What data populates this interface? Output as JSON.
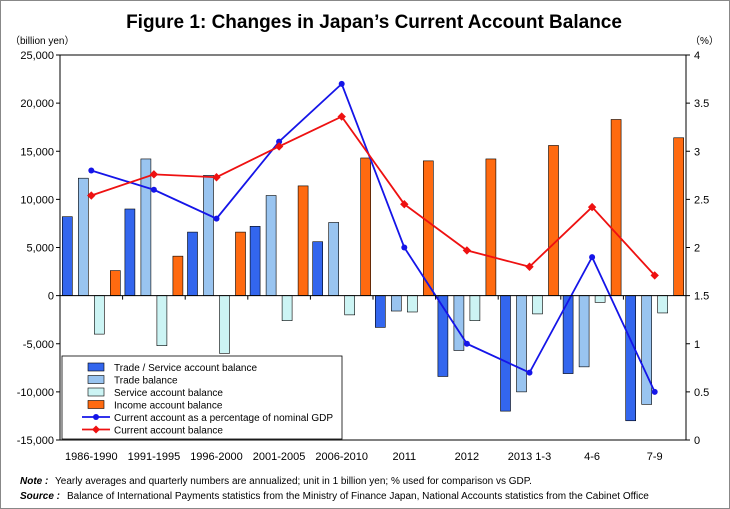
{
  "chart_data": {
    "type": "bar",
    "title": "Figure 1: Changes in Japan’s Current Account Balance",
    "y_left_unit": "（billion yen）",
    "y_right_unit": "（%）",
    "ylim_left": [
      -15000,
      25000
    ],
    "ylim_right": [
      0,
      4
    ],
    "y_left_ticks": [
      "-15,000",
      "-10,000",
      "-5,000",
      "0",
      "5,000",
      "10,000",
      "15,000",
      "20,000",
      "25,000"
    ],
    "y_right_ticks": [
      "0",
      "0.5",
      "1",
      "1.5",
      "2",
      "2.5",
      "3",
      "3.5",
      "4"
    ],
    "categories": [
      "1986-1990",
      "1991-1995",
      "1996-2000",
      "2001-2005",
      "2006-2010",
      "2011",
      "2012",
      "2013  1-3",
      "4-6",
      "7-9"
    ],
    "bar_series": [
      {
        "name": "Trade / Service account balance",
        "color": "#3366ee",
        "values": [
          8200,
          9000,
          6600,
          7200,
          5600,
          -3300,
          -8400,
          -12000,
          -8100,
          -13000
        ]
      },
      {
        "name": "Trade balance",
        "color": "#99c4f0",
        "values": [
          12200,
          14200,
          12500,
          10400,
          7600,
          -1600,
          -5700,
          -10000,
          -7400,
          -11300
        ]
      },
      {
        "name": "Service account balance",
        "color": "#ccf4f4",
        "values": [
          -4000,
          -5200,
          -6000,
          -2600,
          -2000,
          -1700,
          -2600,
          -1900,
          -700,
          -1800
        ]
      },
      {
        "name": "Income account balance",
        "color": "#ff6a10",
        "values": [
          2600,
          4100,
          6600,
          11400,
          14300,
          14000,
          14200,
          15600,
          18300,
          16400
        ]
      }
    ],
    "line_series": [
      {
        "name": "Current account as a percentage of nominal GDP",
        "color": "#1515e8",
        "axis": "right",
        "values": [
          2.8,
          2.6,
          2.3,
          3.1,
          3.7,
          2.0,
          1.0,
          0.7,
          1.9,
          0.5
        ]
      },
      {
        "name": "Current account balance",
        "color": "#ee1111",
        "axis": "left",
        "values": [
          10400,
          12600,
          12300,
          15500,
          18600,
          9500,
          4700,
          3000,
          9200,
          2100
        ]
      }
    ],
    "grid": false,
    "legend_position": "bottom-left"
  },
  "footnotes": {
    "note_label": "Note :",
    "note_text": "Yearly averages and quarterly numbers are annualized; unit in 1 billion yen; % used for comparison vs GDP.",
    "source_label": "Source :",
    "source_text": "Balance of International Payments statistics from the Ministry of Finance Japan, National Accounts statistics from the Cabinet Office"
  }
}
